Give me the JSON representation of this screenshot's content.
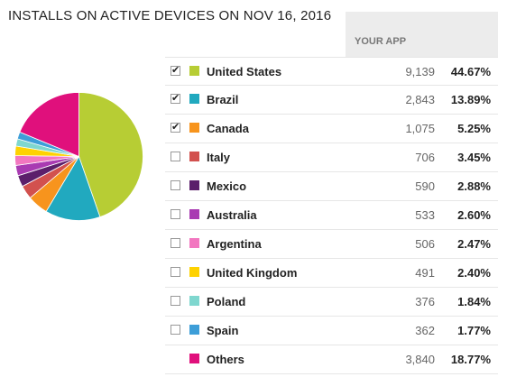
{
  "title": "INSTALLS ON ACTIVE DEVICES ON NOV 16, 2016",
  "column_header": "YOUR APP",
  "chart_data": {
    "type": "pie",
    "title": "INSTALLS ON ACTIVE DEVICES ON NOV 16, 2016",
    "categories": [
      "United States",
      "Brazil",
      "Canada",
      "Italy",
      "Mexico",
      "Australia",
      "Argentina",
      "United Kingdom",
      "Poland",
      "Spain",
      "Others"
    ],
    "values": [
      9139,
      2843,
      1075,
      706,
      590,
      533,
      506,
      491,
      376,
      362,
      3840
    ],
    "percents": [
      "44.67%",
      "13.89%",
      "5.25%",
      "3.45%",
      "2.88%",
      "2.60%",
      "2.47%",
      "2.40%",
      "1.84%",
      "1.77%",
      "18.77%"
    ],
    "colors": [
      "#b7cd34",
      "#21a9bf",
      "#f7941d",
      "#d2514e",
      "#5b1f6b",
      "#a93bb2",
      "#f277c0",
      "#fed201",
      "#7fd7cf",
      "#3d9ed8",
      "#e0107c"
    ]
  },
  "rows": [
    {
      "name": "United States",
      "count": "9,139",
      "pct": "44.67%",
      "checked": true
    },
    {
      "name": "Brazil",
      "count": "2,843",
      "pct": "13.89%",
      "checked": true
    },
    {
      "name": "Canada",
      "count": "1,075",
      "pct": "5.25%",
      "checked": true
    },
    {
      "name": "Italy",
      "count": "706",
      "pct": "3.45%",
      "checked": false
    },
    {
      "name": "Mexico",
      "count": "590",
      "pct": "2.88%",
      "checked": false
    },
    {
      "name": "Australia",
      "count": "533",
      "pct": "2.60%",
      "checked": false
    },
    {
      "name": "Argentina",
      "count": "506",
      "pct": "2.47%",
      "checked": false
    },
    {
      "name": "United Kingdom",
      "count": "491",
      "pct": "2.40%",
      "checked": false
    },
    {
      "name": "Poland",
      "count": "376",
      "pct": "1.84%",
      "checked": false
    },
    {
      "name": "Spain",
      "count": "362",
      "pct": "1.77%",
      "checked": false
    },
    {
      "name": "Others",
      "count": "3,840",
      "pct": "18.77%",
      "checked": null
    }
  ]
}
